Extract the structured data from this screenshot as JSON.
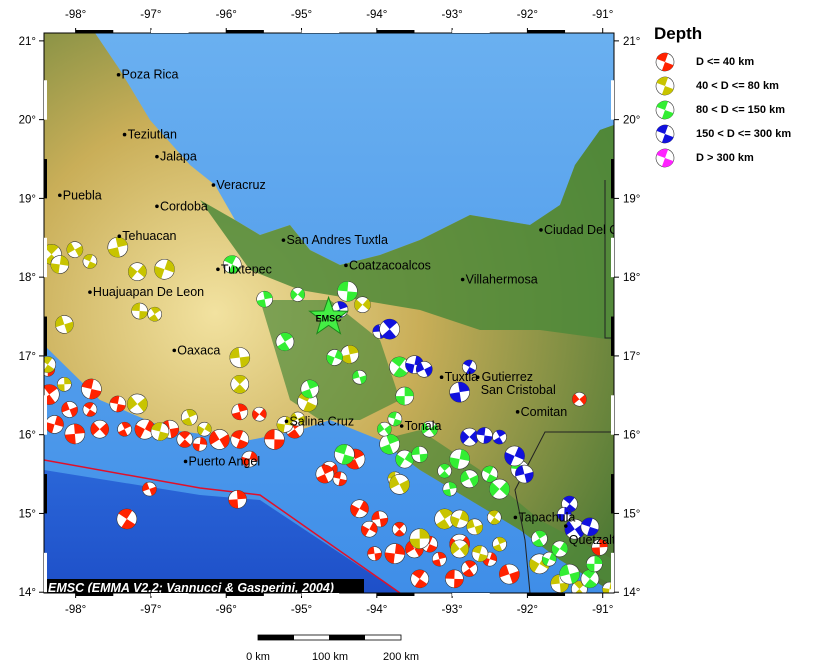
{
  "map": {
    "credit": "EMSC (EMMA V2.2; Vannucci & Gasperini, 2004)",
    "lon_ticks": [
      "-98°",
      "-97°",
      "-96°",
      "-95°",
      "-94°",
      "-93°",
      "-92°",
      "-91°"
    ],
    "lat_ticks": [
      "14°",
      "15°",
      "16°",
      "17°",
      "18°",
      "19°",
      "20°",
      "21°"
    ],
    "extent": {
      "lon": [
        -98.42,
        -90.85
      ],
      "lat": [
        13.99,
        21.1
      ]
    },
    "epicenter": {
      "label": "EMSC",
      "lon": -94.64,
      "lat": 17.49,
      "color": "#44ee44"
    },
    "cities": [
      {
        "name": "Poza Rica",
        "lon": -97.43,
        "lat": 20.57
      },
      {
        "name": "Teziutlan",
        "lon": -97.35,
        "lat": 19.81
      },
      {
        "name": "Jalapa",
        "lon": -96.92,
        "lat": 19.53
      },
      {
        "name": "Veracruz",
        "lon": -96.17,
        "lat": 19.17
      },
      {
        "name": "Puebla",
        "lon": -98.21,
        "lat": 19.04
      },
      {
        "name": "Cordoba",
        "lon": -96.92,
        "lat": 18.9
      },
      {
        "name": "Tehuacan",
        "lon": -97.42,
        "lat": 18.52
      },
      {
        "name": "San Andres Tuxtla",
        "lon": -95.24,
        "lat": 18.47
      },
      {
        "name": "Tuxtepec",
        "lon": -96.11,
        "lat": 18.1
      },
      {
        "name": "Coatzacoalcos",
        "lon": -94.41,
        "lat": 18.15
      },
      {
        "name": "Villahermosa",
        "lon": -92.86,
        "lat": 17.97
      },
      {
        "name": "Ciudad Del Carmen",
        "lon": -91.82,
        "lat": 18.6
      },
      {
        "name": "Huajuapan De Leon",
        "lon": -97.81,
        "lat": 17.81
      },
      {
        "name": "Oaxaca",
        "lon": -96.69,
        "lat": 17.07
      },
      {
        "name": "Tuxtla Gutierrez",
        "lon": -93.14,
        "lat": 16.73
      },
      {
        "name": "San Cristobal",
        "lon": -92.66,
        "lat": 16.73
      },
      {
        "name": "Comitan",
        "lon": -92.13,
        "lat": 16.29
      },
      {
        "name": "Salina Cruz",
        "lon": -95.2,
        "lat": 16.17
      },
      {
        "name": "Tonala",
        "lon": -93.67,
        "lat": 16.11
      },
      {
        "name": "Puerto Angel",
        "lon": -96.54,
        "lat": 15.66
      },
      {
        "name": "Tapachula",
        "lon": -92.16,
        "lat": 14.95
      },
      {
        "name": "Quetzaltenango",
        "lon": -91.49,
        "lat": 14.84
      }
    ],
    "events": [
      [
        -98.37,
        16.83,
        "r"
      ],
      [
        -98.35,
        16.51,
        "r"
      ],
      [
        -98.28,
        16.13,
        "r"
      ],
      [
        -98.08,
        16.32,
        "r"
      ],
      [
        -97.81,
        16.32,
        "r"
      ],
      [
        -98.01,
        16.01,
        "r"
      ],
      [
        -97.68,
        16.07,
        "r"
      ],
      [
        -97.44,
        16.39,
        "r"
      ],
      [
        -97.35,
        16.07,
        "r"
      ],
      [
        -97.08,
        16.07,
        "r"
      ],
      [
        -96.75,
        16.07,
        "r"
      ],
      [
        -96.55,
        15.94,
        "r"
      ],
      [
        -96.35,
        15.88,
        "r"
      ],
      [
        -96.09,
        15.94,
        "r"
      ],
      [
        -95.82,
        15.94,
        "r"
      ],
      [
        -95.82,
        16.29,
        "r"
      ],
      [
        -95.56,
        16.26,
        "r"
      ],
      [
        -95.36,
        15.94,
        "r"
      ],
      [
        -95.09,
        16.07,
        "r"
      ],
      [
        -95.69,
        15.69,
        "r"
      ],
      [
        -97.02,
        15.31,
        "r"
      ],
      [
        -97.32,
        14.93,
        "r"
      ],
      [
        -95.85,
        15.18,
        "r"
      ],
      [
        -94.63,
        15.56,
        "r"
      ],
      [
        -94.49,
        15.44,
        "r"
      ],
      [
        -94.29,
        15.69,
        "r"
      ],
      [
        -94.23,
        15.06,
        "r"
      ],
      [
        -93.96,
        14.93,
        "r"
      ],
      [
        -93.7,
        14.8,
        "r"
      ],
      [
        -93.76,
        14.49,
        "r"
      ],
      [
        -93.5,
        14.55,
        "r"
      ],
      [
        -93.3,
        14.61,
        "r"
      ],
      [
        -93.17,
        14.42,
        "r"
      ],
      [
        -92.9,
        14.61,
        "r"
      ],
      [
        -92.97,
        14.17,
        "r"
      ],
      [
        -92.77,
        14.3,
        "r"
      ],
      [
        -92.5,
        14.42,
        "r"
      ],
      [
        -92.24,
        14.23,
        "r"
      ],
      [
        -93.43,
        14.17,
        "r"
      ],
      [
        -91.04,
        14.57,
        "r"
      ],
      [
        -91.31,
        16.45,
        "r"
      ],
      [
        -97.79,
        16.58,
        "r"
      ],
      [
        -94.69,
        15.5,
        "r"
      ],
      [
        -94.1,
        14.8,
        "r"
      ],
      [
        -94.03,
        14.49,
        "r"
      ],
      [
        -98.32,
        18.29,
        "y"
      ],
      [
        -98.21,
        18.16,
        "y"
      ],
      [
        -98.01,
        18.35,
        "y"
      ],
      [
        -97.81,
        18.2,
        "y"
      ],
      [
        -97.44,
        18.38,
        "y"
      ],
      [
        -97.18,
        18.07,
        "y"
      ],
      [
        -97.15,
        17.57,
        "y"
      ],
      [
        -96.95,
        17.53,
        "y"
      ],
      [
        -96.82,
        18.1,
        "y"
      ],
      [
        -98.15,
        17.4,
        "y"
      ],
      [
        -98.37,
        16.89,
        "y"
      ],
      [
        -98.15,
        16.64,
        "y"
      ],
      [
        -97.18,
        16.39,
        "y"
      ],
      [
        -96.88,
        16.04,
        "y"
      ],
      [
        -96.49,
        16.22,
        "y"
      ],
      [
        -96.29,
        16.07,
        "y"
      ],
      [
        -95.82,
        16.98,
        "y"
      ],
      [
        -95.82,
        16.64,
        "y"
      ],
      [
        -95.22,
        16.13,
        "y"
      ],
      [
        -95.05,
        16.2,
        "y"
      ],
      [
        -94.92,
        16.42,
        "y"
      ],
      [
        -94.36,
        17.02,
        "y"
      ],
      [
        -94.19,
        17.65,
        "y"
      ],
      [
        -93.76,
        15.44,
        "y"
      ],
      [
        -93.1,
        14.93,
        "y"
      ],
      [
        -92.9,
        14.93,
        "y"
      ],
      [
        -92.7,
        14.83,
        "y"
      ],
      [
        -92.44,
        14.95,
        "y"
      ],
      [
        -93.43,
        14.68,
        "y"
      ],
      [
        -92.9,
        14.55,
        "y"
      ],
      [
        -92.63,
        14.49,
        "y"
      ],
      [
        -92.37,
        14.61,
        "y"
      ],
      [
        -91.84,
        14.36,
        "y"
      ],
      [
        -91.57,
        14.11,
        "y"
      ],
      [
        -91.31,
        14.04,
        "y"
      ],
      [
        -90.91,
        14.04,
        "y"
      ],
      [
        -93.7,
        15.37,
        "y"
      ],
      [
        -95.92,
        18.16,
        "g"
      ],
      [
        -95.49,
        17.72,
        "g"
      ],
      [
        -95.05,
        17.78,
        "g"
      ],
      [
        -94.39,
        17.82,
        "g"
      ],
      [
        -95.22,
        17.18,
        "g"
      ],
      [
        -94.56,
        16.98,
        "g"
      ],
      [
        -94.23,
        16.73,
        "g"
      ],
      [
        -93.7,
        16.86,
        "g"
      ],
      [
        -93.63,
        16.49,
        "g"
      ],
      [
        -93.3,
        16.07,
        "g"
      ],
      [
        -93.76,
        16.2,
        "g"
      ],
      [
        -93.83,
        15.88,
        "g"
      ],
      [
        -93.63,
        15.69,
        "g"
      ],
      [
        -93.43,
        15.75,
        "g"
      ],
      [
        -93.1,
        15.54,
        "g"
      ],
      [
        -92.9,
        15.69,
        "g"
      ],
      [
        -92.77,
        15.44,
        "g"
      ],
      [
        -92.5,
        15.5,
        "g"
      ],
      [
        -93.03,
        15.31,
        "g"
      ],
      [
        -92.37,
        15.31,
        "g"
      ],
      [
        -92.1,
        15.56,
        "g"
      ],
      [
        -91.84,
        14.68,
        "g"
      ],
      [
        -91.71,
        14.42,
        "g"
      ],
      [
        -91.44,
        14.23,
        "g"
      ],
      [
        -91.17,
        14.17,
        "g"
      ],
      [
        -91.11,
        14.36,
        "g"
      ],
      [
        -93.9,
        16.07,
        "g"
      ],
      [
        -94.43,
        15.75,
        "g"
      ],
      [
        -94.89,
        16.58,
        "g"
      ],
      [
        -91.57,
        14.55,
        "g"
      ],
      [
        -93.96,
        17.31,
        "b"
      ],
      [
        -93.83,
        17.34,
        "b"
      ],
      [
        -93.5,
        16.89,
        "b"
      ],
      [
        -93.37,
        16.83,
        "b"
      ],
      [
        -92.77,
        16.86,
        "b"
      ],
      [
        -92.9,
        16.54,
        "b"
      ],
      [
        -92.77,
        15.97,
        "b"
      ],
      [
        -92.57,
        15.99,
        "b"
      ],
      [
        -92.37,
        15.97,
        "b"
      ],
      [
        -92.17,
        15.73,
        "b"
      ],
      [
        -92.04,
        15.5,
        "b"
      ],
      [
        -91.44,
        15.12,
        "b"
      ],
      [
        -91.51,
        14.99,
        "b"
      ],
      [
        -91.37,
        14.8,
        "b"
      ],
      [
        -91.17,
        14.83,
        "b"
      ],
      [
        -94.49,
        17.59,
        "b"
      ]
    ]
  },
  "legend": {
    "title": "Depth",
    "items": [
      {
        "label": "D <= 40 km",
        "color": "#ff2200"
      },
      {
        "label": "40 < D <= 80 km",
        "color": "#c8c400"
      },
      {
        "label": "80 < D <= 150 km",
        "color": "#33ee33"
      },
      {
        "label": "150 < D <= 300 km",
        "color": "#1111dd"
      },
      {
        "label": "D > 300 km",
        "color": "#ff22ff"
      }
    ]
  },
  "scale": {
    "labels": [
      "0 km",
      "100 km",
      "200 km"
    ]
  },
  "colors": {
    "r": "#ff2200",
    "y": "#c8c400",
    "g": "#33ee33",
    "b": "#1111dd",
    "p": "#ff22ff"
  }
}
